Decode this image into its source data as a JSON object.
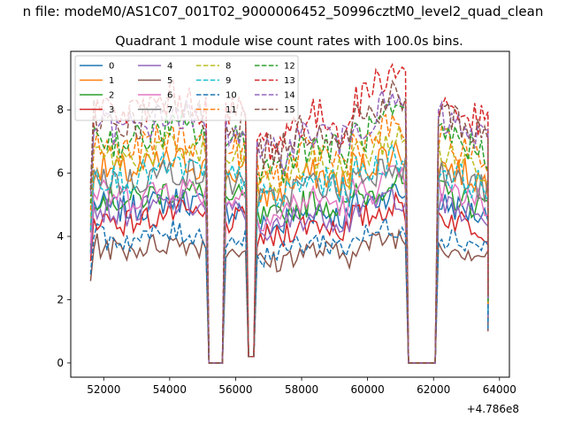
{
  "chart_data": {
    "type": "line",
    "suptitle": "n file: modeM0/AS1C07_001T02_9000006452_50996cztM0_level2_quad_clean",
    "title": "Quadrant 1 module wise count rates with 100.0s bins.",
    "xlabel": "",
    "ylabel": "",
    "x_offset_label": "+4.786e8",
    "xlim": [
      51000,
      64300
    ],
    "ylim": [
      -0.45,
      9.85
    ],
    "x_ticks": [
      52000,
      54000,
      56000,
      58000,
      60000,
      62000,
      64000
    ],
    "y_ticks": [
      0,
      2,
      4,
      6,
      8
    ],
    "legend_location": "top-left",
    "legend_columns": 4,
    "segments": [
      [
        51600,
        55150
      ],
      [
        55650,
        56350
      ],
      [
        56600,
        61200
      ],
      [
        62100,
        63650
      ]
    ],
    "gaps": [
      {
        "from": 55150,
        "to": 55650,
        "floor": 0.0
      },
      {
        "from": 56350,
        "to": 56600,
        "floor": 0.2
      },
      {
        "from": 61200,
        "to": 62100,
        "floor": 0.0
      }
    ],
    "series": [
      {
        "name": "0",
        "color": "#1f77b4",
        "dash": false,
        "level": 5.0
      },
      {
        "name": "1",
        "color": "#ff7f0e",
        "dash": false,
        "level": 6.2
      },
      {
        "name": "2",
        "color": "#2ca02c",
        "dash": false,
        "level": 5.3
      },
      {
        "name": "3",
        "color": "#d62728",
        "dash": false,
        "level": 4.6
      },
      {
        "name": "4",
        "color": "#9467bd",
        "dash": false,
        "level": 4.9
      },
      {
        "name": "5",
        "color": "#8c564b",
        "dash": false,
        "level": 3.7
      },
      {
        "name": "6",
        "color": "#e377c2",
        "dash": false,
        "level": 5.4
      },
      {
        "name": "7",
        "color": "#7f7f7f",
        "dash": false,
        "level": 5.9
      },
      {
        "name": "8",
        "color": "#bcbd22",
        "dash": true,
        "level": 6.6
      },
      {
        "name": "9",
        "color": "#17becf",
        "dash": true,
        "level": 6.0
      },
      {
        "name": "10",
        "color": "#1f77b4",
        "dash": true,
        "level": 4.0
      },
      {
        "name": "11",
        "color": "#ff7f0e",
        "dash": true,
        "level": 6.9
      },
      {
        "name": "12",
        "color": "#2ca02c",
        "dash": true,
        "level": 7.2
      },
      {
        "name": "13",
        "color": "#d62728",
        "dash": true,
        "level": 8.1
      },
      {
        "name": "14",
        "color": "#9467bd",
        "dash": true,
        "level": 7.6
      },
      {
        "name": "15",
        "color": "#8c564b",
        "dash": true,
        "level": 7.8
      }
    ]
  }
}
